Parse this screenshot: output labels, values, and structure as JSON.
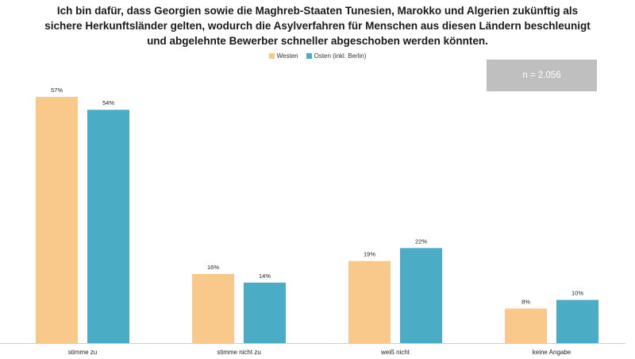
{
  "title_lines": [
    "Ich bin dafür, dass Georgien sowie die Maghreb-Staaten Tunesien, Marokko und Algerien zukünftig als",
    "sichere Herkunftsländer gelten, wodurch die Asylverfahren für Menschen aus diesen Ländern beschleunigt",
    "und abgelehnte Bewerber schneller abgeschoben werden könnten."
  ],
  "sample_note": "n = 2.056",
  "chart_data": {
    "type": "bar",
    "title": "Ich bin dafür, dass Georgien sowie die Maghreb-Staaten Tunesien, Marokko und Algerien zukünftig als sichere Herkunftsländer gelten, wodurch die Asylverfahren für Menschen aus diesen Ländern beschleunigt und abgelehnte Bewerber schneller abgeschoben werden könnten.",
    "categories": [
      "stimme zu",
      "stimme nicht zu",
      "weiß nicht",
      "keine Angabe"
    ],
    "series": [
      {
        "name": "Westen",
        "color": "#f9c88b",
        "values": [
          57,
          16,
          19,
          8
        ],
        "labels": [
          "57%",
          "16%",
          "19%",
          "8%"
        ]
      },
      {
        "name": "Osten (inkl. Berlin)",
        "color": "#4bacc6",
        "values": [
          54,
          14,
          22,
          10
        ],
        "labels": [
          "54%",
          "14%",
          "22%",
          "10%"
        ]
      }
    ],
    "ylim": [
      0,
      60
    ],
    "legend_position": "top-center",
    "grid": false
  }
}
